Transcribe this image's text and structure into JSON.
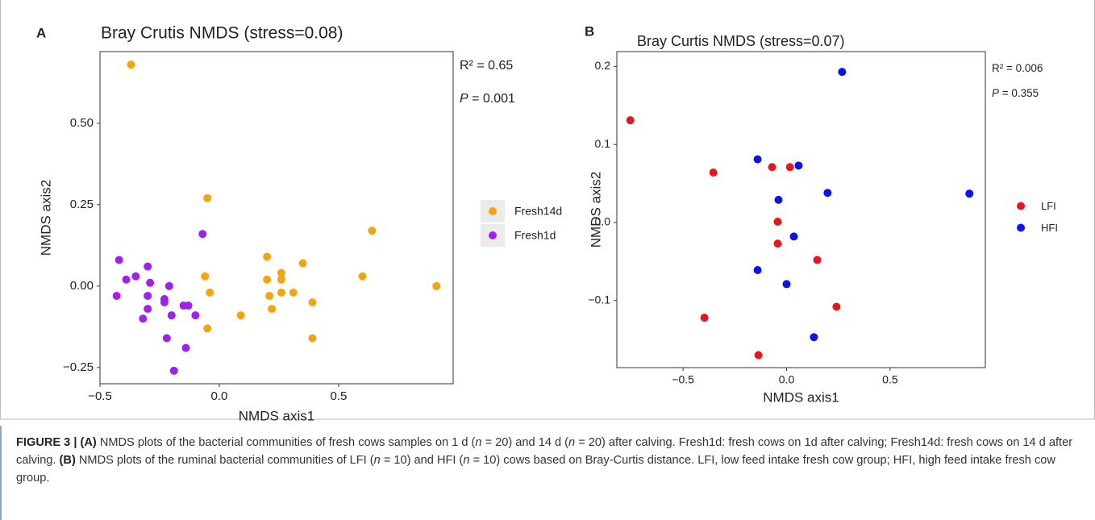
{
  "chart_data": [
    {
      "type": "scatter",
      "panel_label": "A",
      "title": "Bray Crutis NMDS (stress=0.08)",
      "xlabel": "NMDS axis1",
      "ylabel": "NMDS axis2",
      "annotations": [
        [
          {
            "text": "R² = 0.65"
          }
        ],
        [
          {
            "text": "P",
            "italic": true
          },
          {
            "text": " = 0.001"
          }
        ]
      ],
      "xlim": [
        -0.5,
        0.98
      ],
      "ylim": [
        -0.3,
        0.72
      ],
      "grid": false,
      "xticks": [
        {
          "value": -0.5,
          "label": "−0.5"
        },
        {
          "value": 0,
          "label": "0.0"
        },
        {
          "value": 0.5,
          "label": "0.5"
        }
      ],
      "yticks": [
        {
          "value": -0.25,
          "label": "−0.25"
        },
        {
          "value": 0,
          "label": "0.00"
        },
        {
          "value": 0.25,
          "label": "0.25"
        },
        {
          "value": 0.5,
          "label": "0.50"
        }
      ],
      "series": [
        {
          "name": "Fresh14d",
          "color": "#f5a30f",
          "x": [
            -0.37,
            -0.05,
            0.64,
            -0.06,
            -0.04,
            0.09,
            -0.05,
            0.2,
            0.2,
            0.21,
            0.22,
            0.26,
            0.26,
            0.26,
            0.31,
            0.35,
            0.39,
            0.39,
            0.6,
            0.91
          ],
          "values": [
            0.68,
            0.27,
            0.17,
            0.03,
            -0.02,
            -0.09,
            -0.13,
            0.09,
            0.02,
            -0.03,
            -0.07,
            0.04,
            0.02,
            -0.02,
            -0.02,
            0.07,
            -0.05,
            -0.16,
            0.03,
            0.0
          ]
        },
        {
          "name": "Fresh1d",
          "color": "#a020f0",
          "x": [
            -0.07,
            -0.42,
            -0.3,
            -0.39,
            -0.35,
            -0.29,
            -0.21,
            -0.43,
            -0.3,
            -0.23,
            -0.23,
            -0.3,
            -0.15,
            -0.13,
            -0.2,
            -0.1,
            -0.32,
            -0.22,
            -0.14,
            -0.19
          ],
          "values": [
            0.16,
            0.08,
            0.06,
            0.02,
            0.03,
            0.01,
            0.0,
            -0.03,
            -0.03,
            -0.04,
            -0.05,
            -0.07,
            -0.06,
            -0.06,
            -0.09,
            -0.09,
            -0.1,
            -0.16,
            -0.19,
            -0.26
          ]
        }
      ]
    },
    {
      "type": "scatter",
      "panel_label": "B",
      "title": "Bray Curtis NMDS (stress=0.07)",
      "xlabel": "NMDS axis1",
      "ylabel": "NMDS axis2",
      "annotations": [
        [
          {
            "text": "R² = 0.006"
          }
        ],
        [
          {
            "text": "P",
            "italic": true
          },
          {
            "text": " = 0.355"
          }
        ]
      ],
      "xlim": [
        -0.82,
        0.96
      ],
      "ylim": [
        -0.186,
        0.219
      ],
      "grid": false,
      "xticks": [
        {
          "value": -0.5,
          "label": "−0.5"
        },
        {
          "value": 0,
          "label": "0.0"
        },
        {
          "value": 0.5,
          "label": "0.5"
        }
      ],
      "yticks": [
        {
          "value": -0.1,
          "label": "−0.1"
        },
        {
          "value": 0,
          "label": "0.0"
        },
        {
          "value": 0.1,
          "label": "0.1"
        },
        {
          "value": 0.2,
          "label": "0.2"
        }
      ],
      "series": [
        {
          "name": "LFI",
          "color": "#e8161b",
          "x": [
            -0.755,
            -0.354,
            -0.07,
            0.016,
            -0.043,
            -0.043,
            0.148,
            0.241,
            -0.397,
            -0.136
          ],
          "values": [
            0.131,
            0.064,
            0.071,
            0.071,
            0.001,
            -0.027,
            -0.048,
            -0.108,
            -0.122,
            -0.17
          ]
        },
        {
          "name": "HFI",
          "color": "#0a14f0",
          "x": [
            0.268,
            -0.14,
            0.058,
            -0.039,
            0.198,
            0.883,
            0.035,
            -0.14,
            0.0,
            0.132
          ],
          "values": [
            0.193,
            0.081,
            0.073,
            0.029,
            0.038,
            0.037,
            -0.018,
            -0.061,
            -0.079,
            -0.147
          ]
        }
      ]
    }
  ],
  "caption": [
    {
      "text": "FIGURE 3 | (A)",
      "bold": true
    },
    {
      "text": " NMDS plots of the bacterial communities of fresh cows samples on 1 d ("
    },
    {
      "text": "n",
      "italic": true
    },
    {
      "text": " = 20) and 14 d ("
    },
    {
      "text": "n",
      "italic": true
    },
    {
      "text": " = 20) after calving. Fresh1d: fresh cows on 1d after calving; Fresh14d: fresh cows on 14 d after calving. "
    },
    {
      "text": "(B)",
      "bold": true
    },
    {
      "text": " NMDS plots of the ruminal bacterial communities of LFI ("
    },
    {
      "text": "n",
      "italic": true
    },
    {
      "text": " = 10) and HFI ("
    },
    {
      "text": "n",
      "italic": true
    },
    {
      "text": " = 10) cows based on Bray-Curtis distance. LFI, low feed intake fresh cow group; HFI, high feed intake fresh cow group."
    }
  ]
}
